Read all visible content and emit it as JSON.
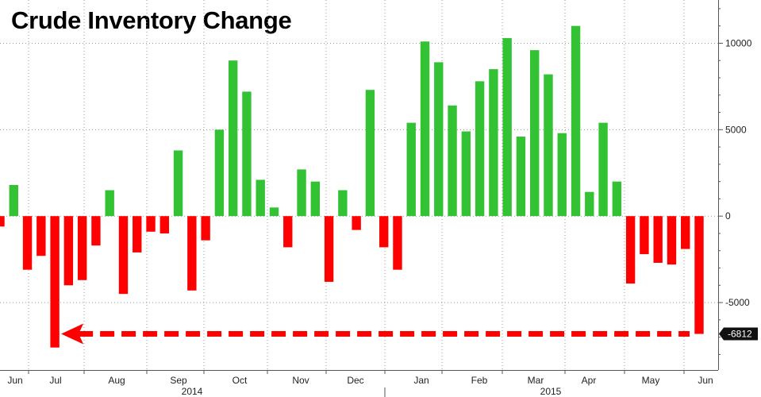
{
  "chart_data": {
    "type": "bar",
    "title": "Crude Inventory Change",
    "ylim": [
      -8900,
      12500
    ],
    "y_ticks": [
      10000,
      5000,
      0,
      -5000
    ],
    "y_tick_labels": [
      "10000",
      "5000",
      "0",
      "-5000"
    ],
    "last_value_label": "-6812",
    "month_labels": [
      "Jun",
      "Jul",
      "Aug",
      "Sep",
      "Oct",
      "Nov",
      "Dec",
      "Jan",
      "Feb",
      "Mar",
      "Apr",
      "May",
      "Jun"
    ],
    "year_labels": [
      "2014",
      "2015"
    ],
    "grid": true,
    "colors": {
      "positive": "#33c233",
      "negative": "#ff0000",
      "annotation": "#ff0000"
    },
    "annotation": "dashed arrow from latest bar (-6812) back to Jul 2014 bar",
    "values": [
      -600,
      1800,
      -3100,
      -2300,
      -7600,
      -4000,
      -3700,
      -1700,
      1500,
      -4500,
      -2100,
      -900,
      -1000,
      3800,
      -4300,
      -1400,
      5000,
      9000,
      7200,
      2100,
      500,
      -1800,
      2700,
      2000,
      -3800,
      1500,
      -800,
      7300,
      -1800,
      -3100,
      5400,
      10100,
      8900,
      6400,
      4900,
      7800,
      8500,
      10300,
      4600,
      9600,
      8200,
      4800,
      11000,
      1400,
      5400,
      2000,
      -3900,
      -2200,
      -2700,
      -2800,
      -1900,
      -6812
    ]
  }
}
